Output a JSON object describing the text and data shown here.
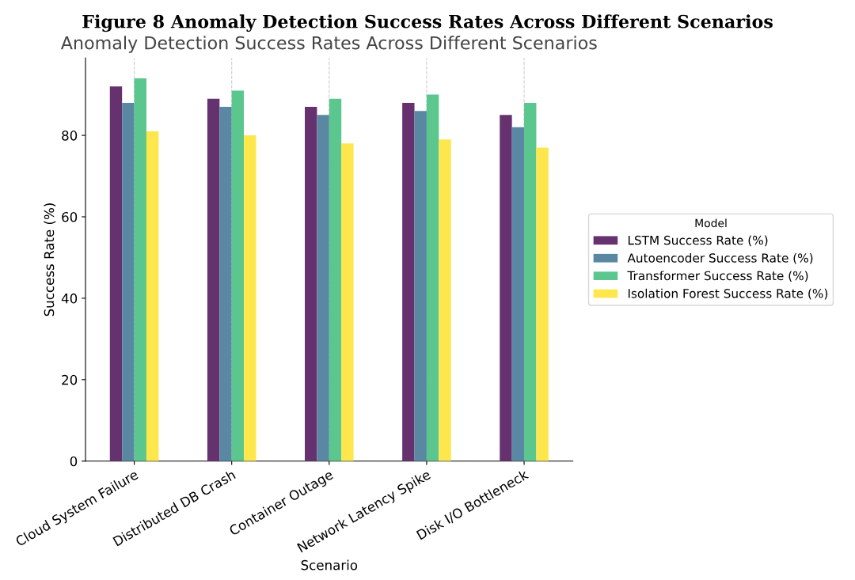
{
  "chart_data": {
    "type": "bar",
    "title": "Anomaly Detection Success Rates Across Different Scenarios",
    "annotations": [
      "Figure 8 Anomaly Detection Success Rates Across Different Scenarios"
    ],
    "xlabel": "Scenario",
    "ylabel": "Success Rate (%)",
    "legend_title": "Model",
    "categories": [
      "Cloud System Failure",
      "Distributed DB Crash",
      "Container Outage",
      "Network Latency Spike",
      "Disk I/O Bottleneck"
    ],
    "series": [
      {
        "name": "LSTM Success Rate (%)",
        "color": "#65316f",
        "values": [
          92,
          89,
          87,
          88,
          85
        ]
      },
      {
        "name": "Autoencoder Success Rate (%)",
        "color": "#5a87a2",
        "values": [
          88,
          87,
          85,
          86,
          82
        ]
      },
      {
        "name": "Transformer Success Rate (%)",
        "color": "#5cc68f",
        "values": [
          94,
          91,
          89,
          90,
          88
        ]
      },
      {
        "name": "Isolation Forest Success Rate (%)",
        "color": "#fde74c",
        "values": [
          81,
          80,
          78,
          79,
          77
        ]
      }
    ],
    "ylim": [
      0,
      99
    ],
    "yticks": [
      0,
      20,
      40,
      60,
      80
    ],
    "grid": "x",
    "legend": "right"
  }
}
